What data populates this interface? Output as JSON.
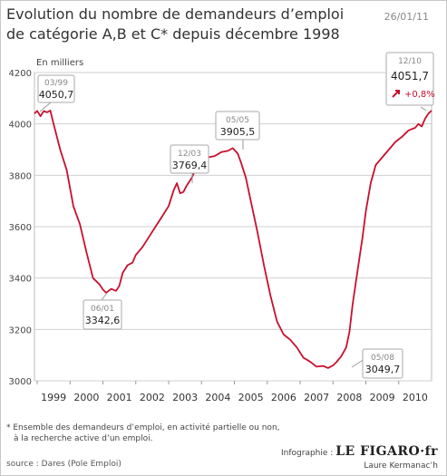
{
  "header": {
    "title_line1": "Evolution du nombre de demandeurs d’emploi",
    "title_line2": "de catégorie A,B et C* depuis décembre 1998",
    "date": "26/01/11"
  },
  "footer": {
    "footnote_line1": "* Ensemble des demandeurs d’emploi, en activité partielle ou non,",
    "footnote_line2": "à la recherche active d’un emploi.",
    "source": "source : Dares (Pole Emploi)",
    "credit_prefix": "Infographie :",
    "credit_logo": "LE FIGARO·fr",
    "author": "Laure Kermanac’h"
  },
  "chart_data": {
    "type": "line",
    "ylabel": "En milliers",
    "ylim": [
      3000,
      4200
    ],
    "yticks": [
      3000,
      3200,
      3400,
      3600,
      3800,
      4000,
      4200
    ],
    "xlim": [
      1998.917,
      2011.0
    ],
    "xtick_labels": [
      "1999",
      "2000",
      "2001",
      "2002",
      "2003",
      "2004",
      "2005",
      "2006",
      "2007",
      "2008",
      "2009",
      "2010"
    ],
    "grid": true,
    "line_color": "#c8102e",
    "series": [
      {
        "x": [
          1998.92,
          1999.0,
          1999.1,
          1999.2,
          1999.3,
          1999.4,
          1999.5,
          1999.7,
          1999.9,
          2000.1,
          2000.3,
          2000.5,
          2000.7,
          2000.9,
          2001.0,
          2001.1,
          2001.25,
          2001.4,
          2001.5,
          2001.6,
          2001.75,
          2001.9,
          2002.0,
          2002.2,
          2002.4,
          2002.6,
          2002.8,
          2003.0,
          2003.15,
          2003.25,
          2003.35,
          2003.45,
          2003.55,
          2003.7,
          2003.85,
          2004.0,
          2004.2,
          2004.4,
          2004.6,
          2004.8,
          2004.95,
          2005.1,
          2005.2,
          2005.35,
          2005.5,
          2005.7,
          2005.9,
          2006.1,
          2006.3,
          2006.5,
          2006.7,
          2006.9,
          2007.1,
          2007.3,
          2007.5,
          2007.7,
          2007.85,
          2008.0,
          2008.1,
          2008.25,
          2008.4,
          2008.5,
          2008.6,
          2008.75,
          2008.9,
          2009.0,
          2009.15,
          2009.3,
          2009.5,
          2009.7,
          2009.9,
          2010.1,
          2010.3,
          2010.5,
          2010.6,
          2010.7,
          2010.8,
          2010.9,
          2011.0
        ],
        "y": [
          4040,
          4050.7,
          4030,
          4050,
          4045,
          4052,
          4000,
          3900,
          3820,
          3680,
          3610,
          3500,
          3400,
          3375,
          3355,
          3342.6,
          3358,
          3350,
          3370,
          3420,
          3450,
          3460,
          3490,
          3520,
          3560,
          3600,
          3640,
          3680,
          3740,
          3769.4,
          3730,
          3735,
          3760,
          3790,
          3830,
          3860,
          3870,
          3875,
          3890,
          3895,
          3905.5,
          3885,
          3850,
          3790,
          3700,
          3580,
          3450,
          3330,
          3230,
          3180,
          3160,
          3130,
          3090,
          3075,
          3055,
          3058,
          3049.7,
          3060,
          3072,
          3095,
          3130,
          3190,
          3300,
          3430,
          3560,
          3660,
          3770,
          3840,
          3870,
          3900,
          3930,
          3950,
          3975,
          3985,
          4000,
          3990,
          4020,
          4040,
          4051.7
        ]
      }
    ],
    "annotations": [
      {
        "date": "03/99",
        "value": "4050,7"
      },
      {
        "date": "06/01",
        "value": "3342,6"
      },
      {
        "date": "12/03",
        "value": "3769,4"
      },
      {
        "date": "05/05",
        "value": "3905,5"
      },
      {
        "date": "05/08",
        "value": "3049,7"
      },
      {
        "date": "12/10",
        "value": "4051,7",
        "change": "+0,8%"
      }
    ]
  }
}
